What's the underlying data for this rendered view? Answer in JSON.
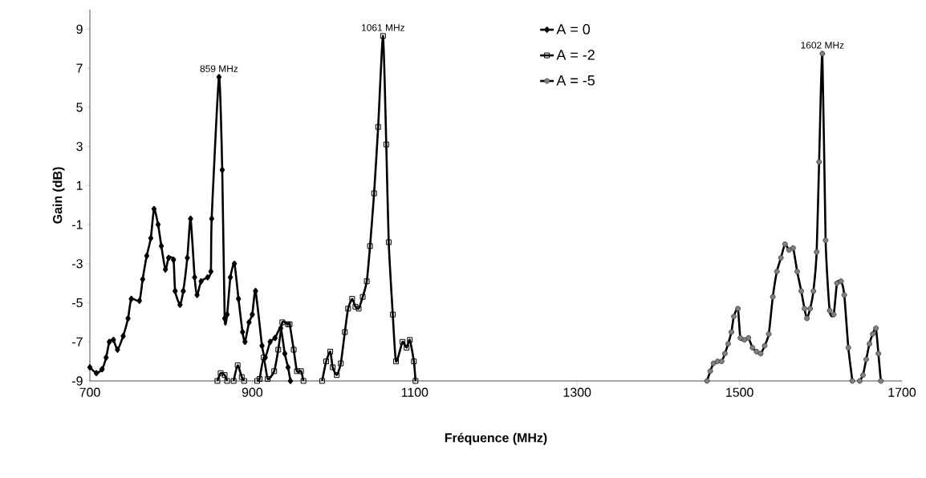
{
  "chart_data": {
    "type": "line",
    "xlabel": "Fréquence (MHz)",
    "ylabel": "Gain (dB)",
    "xlim": [
      700,
      1700
    ],
    "xticks": [
      700,
      900,
      1100,
      1300,
      1500,
      1700
    ],
    "ylim": [
      -9,
      10
    ],
    "yticks": [
      -9,
      -7,
      -5,
      -3,
      -1,
      1,
      3,
      5,
      7,
      9
    ],
    "grid": false,
    "legend": "top",
    "line_style": "solid",
    "annotations": [
      {
        "text": "859 MHz",
        "x": 859,
        "y": 6.55
      },
      {
        "text": "1061 MHz",
        "x": 1061,
        "y": 8.65
      },
      {
        "text": "1602 MHz",
        "x": 1602,
        "y": 7.75
      }
    ],
    "series": [
      {
        "name": "A = 0",
        "color": "#000000",
        "marker": "diamond",
        "x": [
          700,
          708,
          715,
          720,
          724,
          729,
          734,
          741,
          747,
          751,
          761,
          765,
          770,
          775,
          779,
          784,
          788,
          793,
          797,
          803,
          805,
          811,
          815,
          820,
          824,
          829,
          832,
          837,
          845,
          849,
          850,
          859,
          863,
          866,
          869,
          873,
          878,
          883,
          888,
          891,
          896,
          900,
          904,
          912,
          916,
          922,
          928,
          935,
          940,
          944,
          947
        ],
        "values": [
          -8.3,
          -8.6,
          -8.4,
          -7.8,
          -7.0,
          -6.9,
          -7.4,
          -6.7,
          -5.8,
          -4.8,
          -4.9,
          -3.8,
          -2.6,
          -1.7,
          -0.2,
          -1.0,
          -2.1,
          -3.3,
          -2.7,
          -2.8,
          -4.4,
          -5.1,
          -4.4,
          -2.7,
          -0.7,
          -3.7,
          -4.6,
          -3.9,
          -3.7,
          -3.4,
          -0.7,
          6.55,
          1.8,
          -5.8,
          -5.6,
          -3.7,
          -3.0,
          -4.8,
          -6.5,
          -7.0,
          -6.0,
          -5.6,
          -4.4,
          -7.2,
          -7.8,
          -7.0,
          -6.8,
          -6.3,
          -7.6,
          -8.3,
          -9
        ]
      },
      {
        "name": "A = -2",
        "color": "#000000",
        "marker": "square",
        "x": [
          857,
          861,
          866,
          869,
          873,
          877,
          882,
          887,
          890,
          894,
          906,
          909,
          914,
          919,
          927,
          932,
          937,
          944,
          946,
          951,
          955,
          960,
          963,
          970,
          986,
          991,
          996,
          999,
          1004,
          1009,
          1014,
          1018,
          1023,
          1027,
          1031,
          1036,
          1041,
          1045,
          1050,
          1055,
          1061,
          1065,
          1068,
          1073,
          1077,
          1085,
          1090,
          1094,
          1099,
          1101
        ],
        "values": [
          -9,
          -8.6,
          -8.7,
          -9,
          null,
          -9,
          -8.2,
          -8.8,
          -9,
          null,
          -9,
          -8.9,
          -7.8,
          -8.9,
          -8.5,
          -7.4,
          -6.0,
          -6.1,
          -6.1,
          -7.4,
          -8.5,
          -8.5,
          -9,
          null,
          -9,
          -8.0,
          -7.5,
          -8.3,
          -8.7,
          -8.1,
          -6.5,
          -5.3,
          -4.8,
          -5.2,
          -5.3,
          -4.7,
          -3.9,
          -2.1,
          0.6,
          4.0,
          8.65,
          3.1,
          -1.9,
          -5.6,
          -8.0,
          -7.0,
          -7.3,
          -6.9,
          -8.0,
          -9
        ]
      },
      {
        "name": "A = -5",
        "color": "#000000",
        "marker": "circle",
        "x": [
          1460,
          1464,
          1468,
          1473,
          1478,
          1482,
          1486,
          1490,
          1493,
          1498,
          1501,
          1506,
          1511,
          1516,
          1521,
          1526,
          1531,
          1536,
          1541,
          1546,
          1551,
          1556,
          1561,
          1566,
          1571,
          1576,
          1580,
          1583,
          1587,
          1591,
          1595,
          1598,
          1602,
          1606,
          1611,
          1616,
          1620,
          1625,
          1629,
          1634,
          1639,
          1644,
          1648,
          1652,
          1656,
          1660,
          1664,
          1668,
          1671,
          1674
        ],
        "values": [
          -9,
          -8.5,
          -8.1,
          -8.0,
          -8.0,
          -7.6,
          -7.1,
          -6.5,
          -5.7,
          -5.3,
          -6.8,
          -6.9,
          -6.8,
          -7.3,
          -7.5,
          -7.6,
          -7.2,
          -6.6,
          -4.7,
          -3.4,
          -2.7,
          -2.0,
          -2.3,
          -2.2,
          -3.4,
          -4.4,
          -5.3,
          -5.8,
          -5.3,
          -4.4,
          -2.4,
          2.2,
          7.75,
          -1.8,
          -5.4,
          -5.6,
          -4.0,
          -3.9,
          -4.6,
          -7.3,
          -9,
          null,
          -9,
          -8.7,
          -7.9,
          -7.1,
          -6.6,
          -6.3,
          -7.6,
          -9
        ]
      }
    ]
  }
}
